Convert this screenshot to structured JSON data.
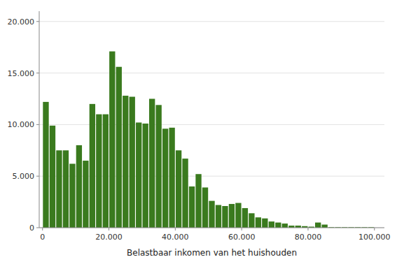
{
  "chart_data": {
    "type": "histogram",
    "xlabel": "Belastbaar inkomen van het huishouden",
    "color": "#3a7a1e",
    "grid": true,
    "xlim": [
      -1000,
      103000
    ],
    "ylim": [
      0,
      21000
    ],
    "xticks": [
      0,
      {
        "value": 20000,
        "label": "20.000"
      },
      {
        "value": 40000,
        "label": "40.000"
      },
      {
        "value": 60000,
        "label": "60.000"
      },
      {
        "value": 80000,
        "label": "80.000"
      },
      {
        "value": 100000,
        "label": "100.000"
      }
    ],
    "yticks": [
      0,
      {
        "value": 5000,
        "label": "5.000"
      },
      {
        "value": 10000,
        "label": "10.000"
      },
      {
        "value": 15000,
        "label": "15.000"
      },
      {
        "value": 20000,
        "label": "20.000"
      }
    ],
    "bins": [
      0,
      2000,
      4000,
      6000,
      8000,
      10000,
      12000,
      14000,
      16000,
      18000,
      20000,
      22000,
      24000,
      26000,
      28000,
      30000,
      32000,
      34000,
      36000,
      38000,
      40000,
      42000,
      44000,
      46000,
      48000,
      50000,
      52000,
      54000,
      56000,
      58000,
      60000,
      62000,
      64000,
      66000,
      68000,
      70000,
      72000,
      74000,
      76000,
      78000,
      80000,
      82000,
      84000,
      86000,
      88000,
      90000,
      92000,
      94000,
      96000,
      98000,
      100000
    ],
    "values": [
      12200,
      9900,
      7500,
      7500,
      6200,
      8000,
      6500,
      12000,
      11000,
      11000,
      17100,
      15600,
      12800,
      12700,
      10200,
      10100,
      12500,
      11900,
      9600,
      9700,
      7500,
      6700,
      4000,
      5200,
      3900,
      2600,
      2200,
      2100,
      2300,
      2400,
      1900,
      1400,
      1000,
      900,
      600,
      500,
      400,
      200,
      200,
      150,
      100,
      500,
      300,
      50,
      50,
      50,
      50,
      50,
      50,
      50
    ]
  }
}
